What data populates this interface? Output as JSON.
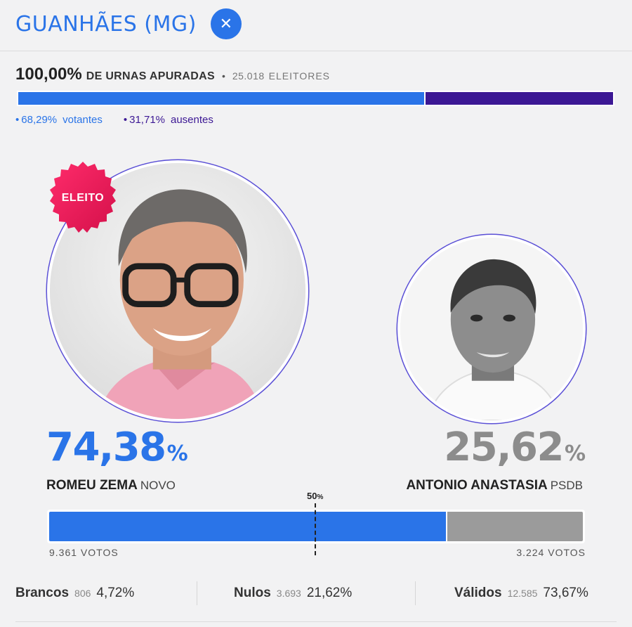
{
  "header": {
    "city": "GUANHÃES (MG)",
    "close_icon": "close-icon"
  },
  "apuracao": {
    "percent": "100,00%",
    "label": "DE URNAS APURADAS",
    "bullet": "•",
    "electors_count": "25.018",
    "electors_label": "ELEITORES",
    "turnout_fraction": 0.6829
  },
  "legend": {
    "voters_pct": "68,29%",
    "voters_label": "votantes",
    "absent_pct": "31,71%",
    "absent_label": "ausentes",
    "bullet": "•"
  },
  "colors": {
    "accent": "#2a74e8",
    "absent": "#3c1894",
    "winner_badge": "#e8185a",
    "loser": "#9b9b9b"
  },
  "candidates": [
    {
      "name": "ROMEU ZEMA",
      "party": "NOVO",
      "percent": "74,38",
      "percent_sign": "%",
      "votes": "9.361 VOTOS",
      "badge": "ELEITO",
      "share": 0.7438
    },
    {
      "name": "ANTONIO ANASTASIA",
      "party": "PSDB",
      "percent": "25,62",
      "percent_sign": "%",
      "votes": "3.224 VOTOS",
      "share": 0.2562
    }
  ],
  "half_mark": {
    "number": "50",
    "unit": "%"
  },
  "stats": [
    {
      "label": "Brancos",
      "count": "806",
      "percent": "4,72%"
    },
    {
      "label": "Nulos",
      "count": "3.693",
      "percent": "21,62%"
    },
    {
      "label": "Válidos",
      "count": "12.585",
      "percent": "73,67%"
    }
  ]
}
